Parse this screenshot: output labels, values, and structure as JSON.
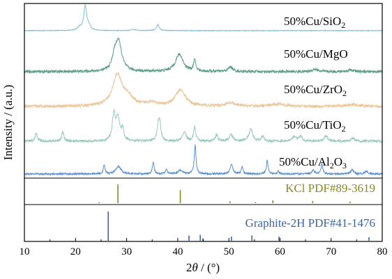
{
  "chart_data": {
    "type": "line",
    "subtype": "xrd-stacked-patterns-with-reference-sticks",
    "xlabel": {
      "pre": "2",
      "var": "θ",
      "post": " / (°)"
    },
    "ylabel": "Intensity / (a.u.)",
    "xlim": [
      10,
      80
    ],
    "xticks": [
      10,
      20,
      30,
      40,
      50,
      60,
      70,
      80
    ],
    "y_axis_tick_labels": false,
    "grid": false,
    "series": [
      {
        "name": "50%Cu/SiO2",
        "label_parts": [
          {
            "t": "50%Cu/SiO"
          },
          {
            "t": "2",
            "sub": true
          }
        ],
        "color": "#7bbcd6",
        "peaks": [
          [
            20.8,
            0.12,
            0.4
          ],
          [
            21.9,
            1.0,
            0.35
          ],
          [
            22.6,
            0.15,
            0.4
          ],
          [
            36.1,
            0.25,
            0.3
          ],
          [
            31.4,
            0.04,
            0.6
          ]
        ],
        "noise": 0.012
      },
      {
        "name": "50%Cu/MgO",
        "label_parts": [
          {
            "t": "50%Cu/MgO"
          }
        ],
        "color": "#5d9e86",
        "peaks": [
          [
            28.4,
            0.95,
            0.75
          ],
          [
            27.6,
            0.35,
            0.5
          ],
          [
            40.3,
            0.55,
            0.9
          ],
          [
            43.3,
            0.35,
            0.25
          ],
          [
            50.3,
            0.15,
            0.5
          ],
          [
            66.8,
            0.08,
            0.6
          ],
          [
            73.8,
            0.06,
            0.6
          ]
        ],
        "noise": 0.045
      },
      {
        "name": "50%Cu/ZrO2",
        "label_parts": [
          {
            "t": "50%Cu/ZrO"
          },
          {
            "t": "2",
            "sub": true
          }
        ],
        "color": "#ebc79b",
        "peaks": [
          [
            28.2,
            1.0,
            1.1
          ],
          [
            30.3,
            0.25,
            1.2
          ],
          [
            40.5,
            0.52,
            1.2
          ],
          [
            50.3,
            0.1,
            1.2
          ],
          [
            34.8,
            0.12,
            1.0
          ],
          [
            59.8,
            0.08,
            1.5
          ],
          [
            74.2,
            0.06,
            1.5
          ]
        ],
        "noise": 0.05
      },
      {
        "name": "50%Cu/TiO2",
        "label_parts": [
          {
            "t": "50%Cu/TiO"
          },
          {
            "t": "2",
            "sub": true
          }
        ],
        "color": "#97cbb8",
        "peaks": [
          [
            12.3,
            0.25,
            0.25
          ],
          [
            17.5,
            0.3,
            0.25
          ],
          [
            27.5,
            0.85,
            0.35
          ],
          [
            28.3,
            0.7,
            0.4
          ],
          [
            29.2,
            0.35,
            0.3
          ],
          [
            36.2,
            0.5,
            0.3
          ],
          [
            36.5,
            0.45,
            0.25
          ],
          [
            41.3,
            0.3,
            0.4
          ],
          [
            43.3,
            0.45,
            0.25
          ],
          [
            47.6,
            0.2,
            0.3
          ],
          [
            50.4,
            0.22,
            0.4
          ],
          [
            54.3,
            0.38,
            0.45
          ],
          [
            56.6,
            0.15,
            0.3
          ],
          [
            62.8,
            0.15,
            0.4
          ],
          [
            64.0,
            0.15,
            0.4
          ],
          [
            69.0,
            0.18,
            0.4
          ],
          [
            74.3,
            0.1,
            0.4
          ]
        ],
        "noise": 0.04
      },
      {
        "name": "50%Cu/Al2O3",
        "label_parts": [
          {
            "t": "50%Cu/Al"
          },
          {
            "t": "2",
            "sub": true
          },
          {
            "t": "O"
          },
          {
            "t": "3",
            "sub": true
          }
        ],
        "color": "#5b8fd0",
        "peaks": [
          [
            25.6,
            0.3,
            0.2
          ],
          [
            28.4,
            0.25,
            0.6
          ],
          [
            35.2,
            0.4,
            0.2
          ],
          [
            37.8,
            0.15,
            0.25
          ],
          [
            40.5,
            0.12,
            0.5
          ],
          [
            43.4,
            1.0,
            0.2
          ],
          [
            52.6,
            0.25,
            0.2
          ],
          [
            50.5,
            0.35,
            0.3
          ],
          [
            57.5,
            0.45,
            0.2
          ],
          [
            59.7,
            0.1,
            0.2
          ],
          [
            66.5,
            0.15,
            0.25
          ],
          [
            68.2,
            0.35,
            0.2
          ],
          [
            74.1,
            0.15,
            0.3
          ],
          [
            76.9,
            0.1,
            0.3
          ]
        ],
        "noise": 0.03
      }
    ],
    "references": [
      {
        "name": "KCl PDF#89-3619",
        "color": "#8b8a1a",
        "lines": [
          [
            28.3,
            1.0
          ],
          [
            40.5,
            0.7
          ],
          [
            50.2,
            0.1
          ],
          [
            58.6,
            0.15
          ],
          [
            66.4,
            0.12
          ],
          [
            73.7,
            0.08
          ],
          [
            24.6,
            0.05
          ],
          [
            55.2,
            0.05
          ]
        ]
      },
      {
        "name": "Graphite-2H PDF#41-1476",
        "color": "#3b66a6",
        "lines": [
          [
            26.4,
            1.0
          ],
          [
            42.2,
            0.18
          ],
          [
            44.4,
            0.2
          ],
          [
            50.5,
            0.14
          ],
          [
            54.5,
            0.18
          ],
          [
            59.8,
            0.14
          ],
          [
            77.4,
            0.12
          ],
          [
            44.9,
            0.08
          ]
        ]
      }
    ]
  }
}
